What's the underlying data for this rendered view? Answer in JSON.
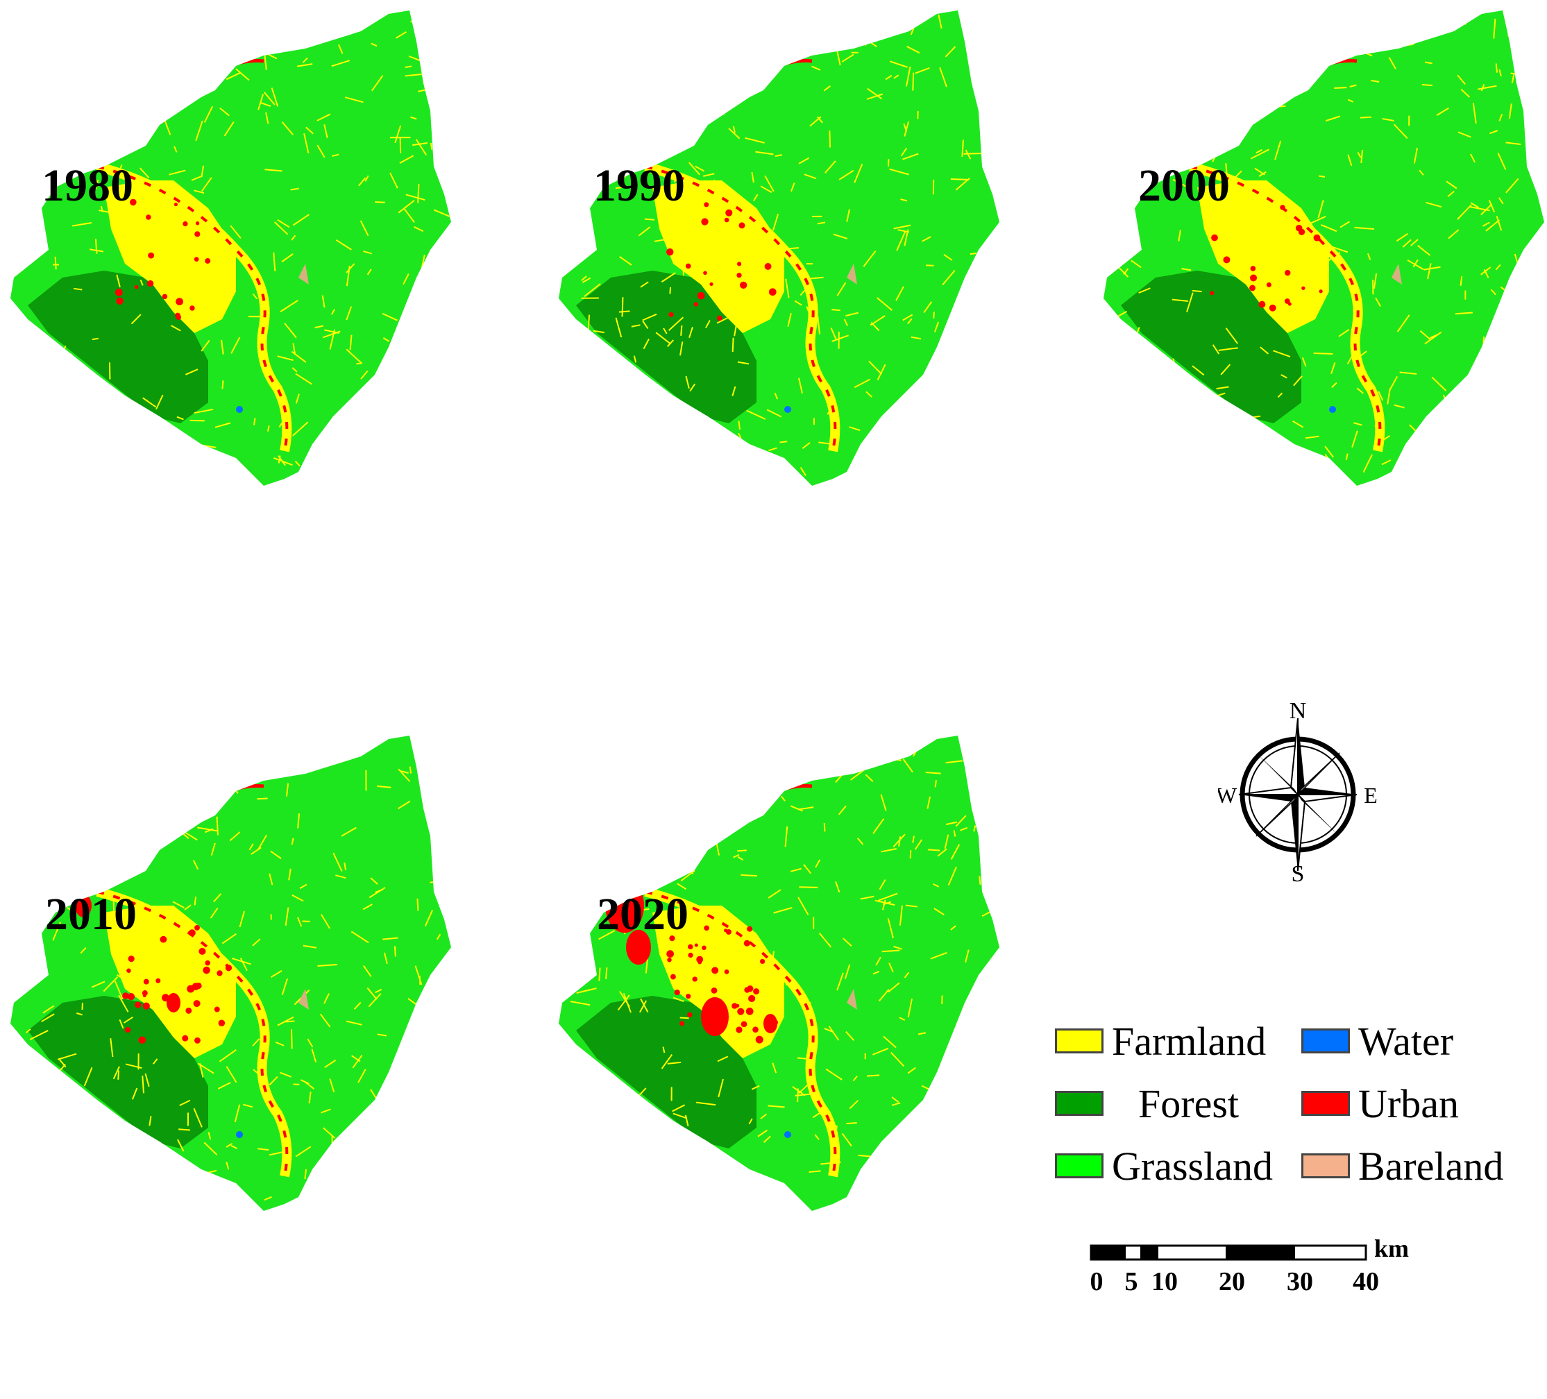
{
  "panels": [
    {
      "year": "1980",
      "urban_level": "low"
    },
    {
      "year": "1990",
      "urban_level": "low"
    },
    {
      "year": "2000",
      "urban_level": "low"
    },
    {
      "year": "2010",
      "urban_level": "medium"
    },
    {
      "year": "2020",
      "urban_level": "high"
    }
  ],
  "compass": {
    "n": "N",
    "s": "S",
    "e": "E",
    "w": "W"
  },
  "legend": [
    {
      "label": "Farmland",
      "color": "#ffff00"
    },
    {
      "label": "Water",
      "color": "#0070ff"
    },
    {
      "label": "Forest",
      "color": "#00a000"
    },
    {
      "label": "Urban",
      "color": "#ff0000"
    },
    {
      "label": "Grassland",
      "color": "#00ff00"
    },
    {
      "label": "Bareland",
      "color": "#f5b08c"
    }
  ],
  "scale": {
    "unit": "km",
    "ticks": [
      "0",
      "5",
      "10",
      "20",
      "30",
      "40"
    ]
  },
  "colors": {
    "grassland": "#1ee61e",
    "forest": "#0a9a0a",
    "farmland": "#ffff00",
    "urban": "#ff0000",
    "water": "#0070ff",
    "bareland": "#d8b080"
  }
}
